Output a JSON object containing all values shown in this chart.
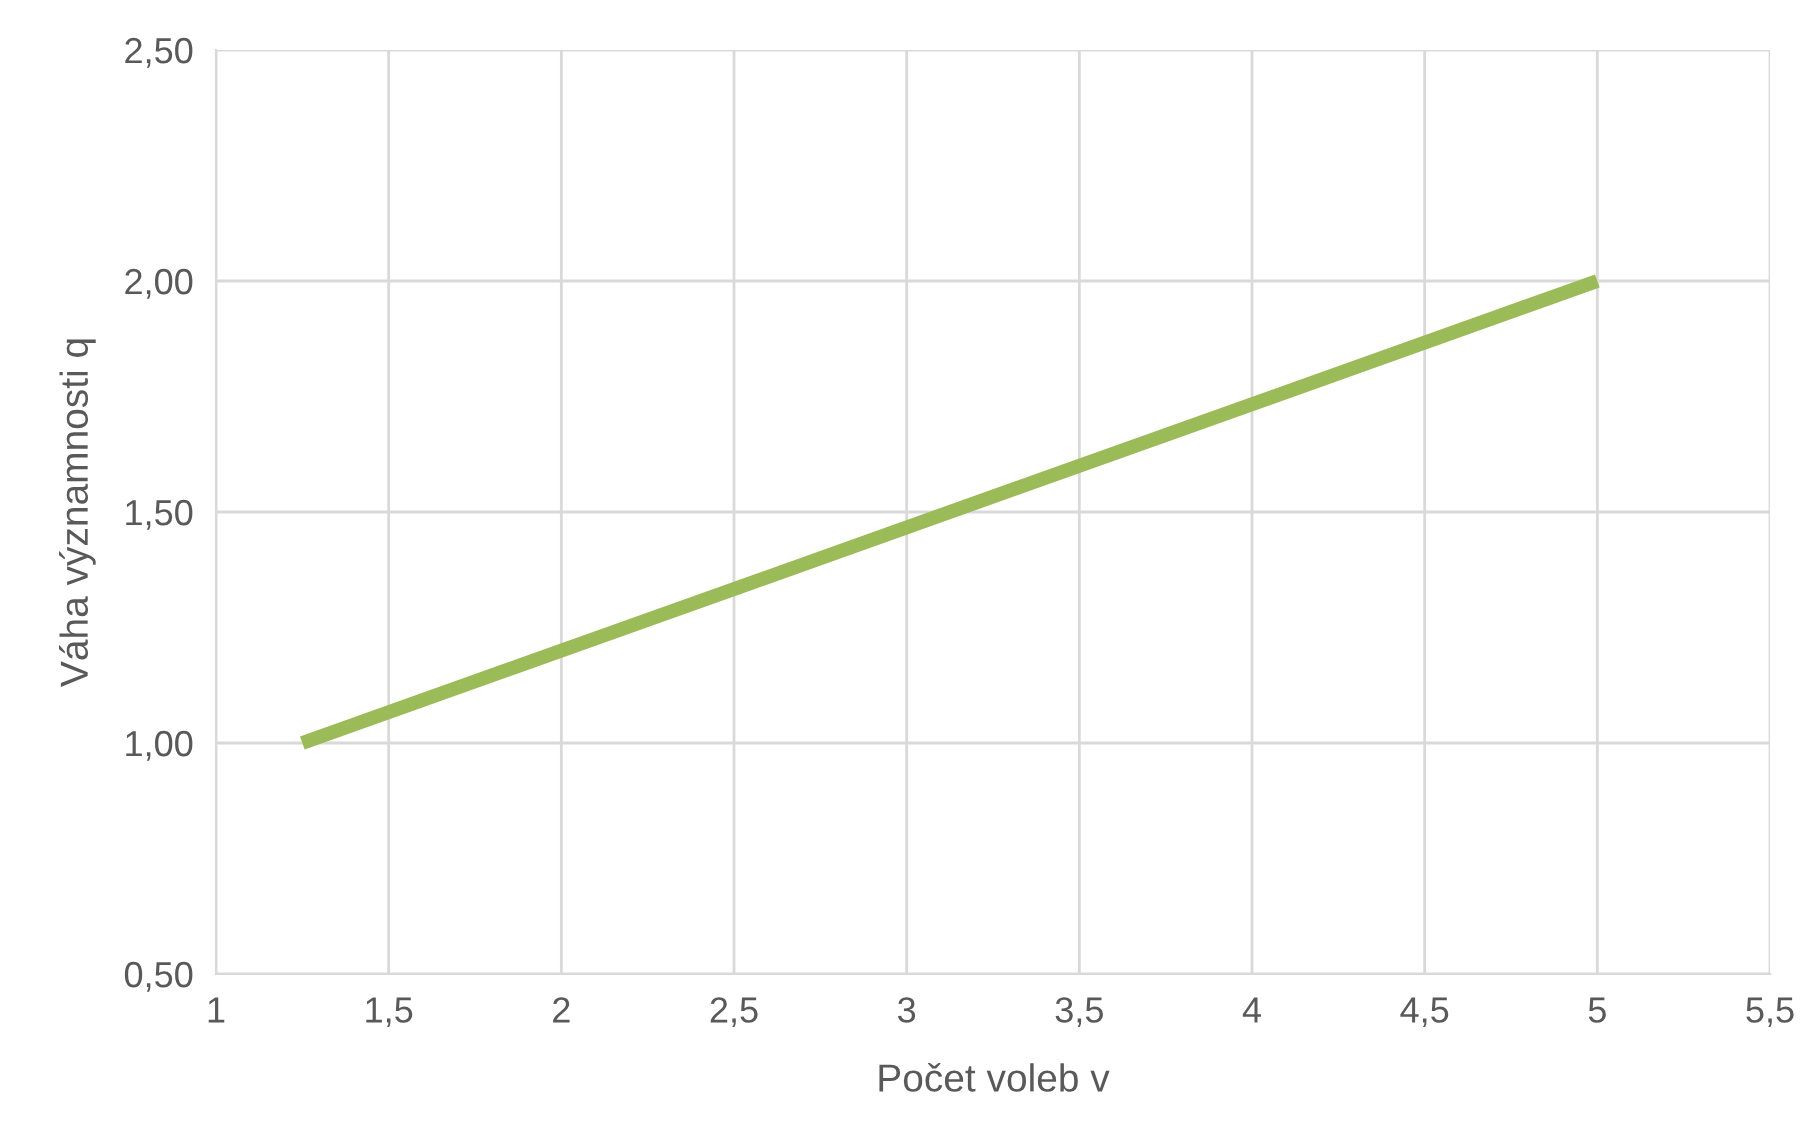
{
  "chart_data": {
    "type": "line",
    "xlabel": "Počet voleb v",
    "ylabel": "Váha významnosti q",
    "x": [
      1.25,
      5
    ],
    "series": [
      {
        "color": "#9bbb59",
        "values": [
          1.0,
          2.0
        ]
      }
    ],
    "xlim": [
      1,
      5.5
    ],
    "ylim": [
      0.5,
      2.5
    ],
    "xticks": [
      1,
      {
        "value": 1.5,
        "label": "1,5"
      },
      2,
      {
        "value": 2.5,
        "label": "2,5"
      },
      3,
      {
        "value": 3.5,
        "label": "3,5"
      },
      4,
      {
        "value": 4.5,
        "label": "4,5"
      },
      5,
      {
        "value": 5.5,
        "label": "5,5"
      }
    ],
    "yticks": [
      {
        "value": 0.5,
        "label": "0,50"
      },
      {
        "value": 1.0,
        "label": "1,00"
      },
      {
        "value": 1.5,
        "label": "1,50"
      },
      {
        "value": 2.0,
        "label": "2,00"
      },
      {
        "value": 2.5,
        "label": "2,50"
      }
    ],
    "grid": true,
    "marker": "none",
    "line_style": "solid"
  }
}
